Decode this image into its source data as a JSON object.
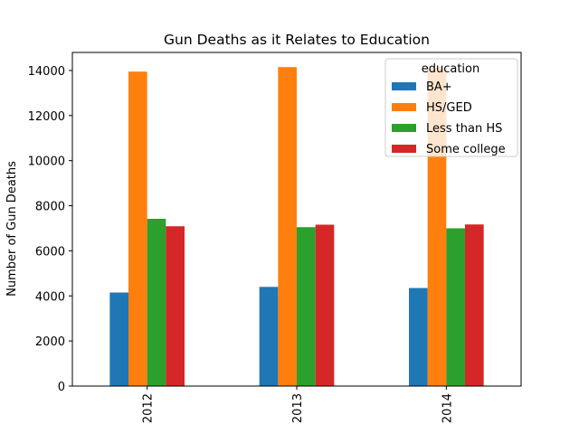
{
  "chart_data": {
    "type": "bar",
    "title": "Gun Deaths as it Relates to Education",
    "xlabel": "",
    "ylabel": "Number of Gun Deaths",
    "categories": [
      "2012",
      "2013",
      "2014"
    ],
    "ylim": [
      0,
      14800
    ],
    "yticks": [
      0,
      2000,
      4000,
      6000,
      8000,
      10000,
      12000,
      14000
    ],
    "grid": false,
    "legend": {
      "title": "education",
      "placement": "top-right"
    },
    "series": [
      {
        "name": "BA+",
        "color": "#1f77b4",
        "values": [
          4150,
          4400,
          4350
        ]
      },
      {
        "name": "HS/GED",
        "color": "#ff7f0e",
        "values": [
          13950,
          14150,
          14130
        ]
      },
      {
        "name": "Less than HS",
        "color": "#2ca02c",
        "values": [
          7420,
          7050,
          7000
        ]
      },
      {
        "name": "Some college",
        "color": "#d62728",
        "values": [
          7090,
          7160,
          7170
        ]
      }
    ]
  }
}
